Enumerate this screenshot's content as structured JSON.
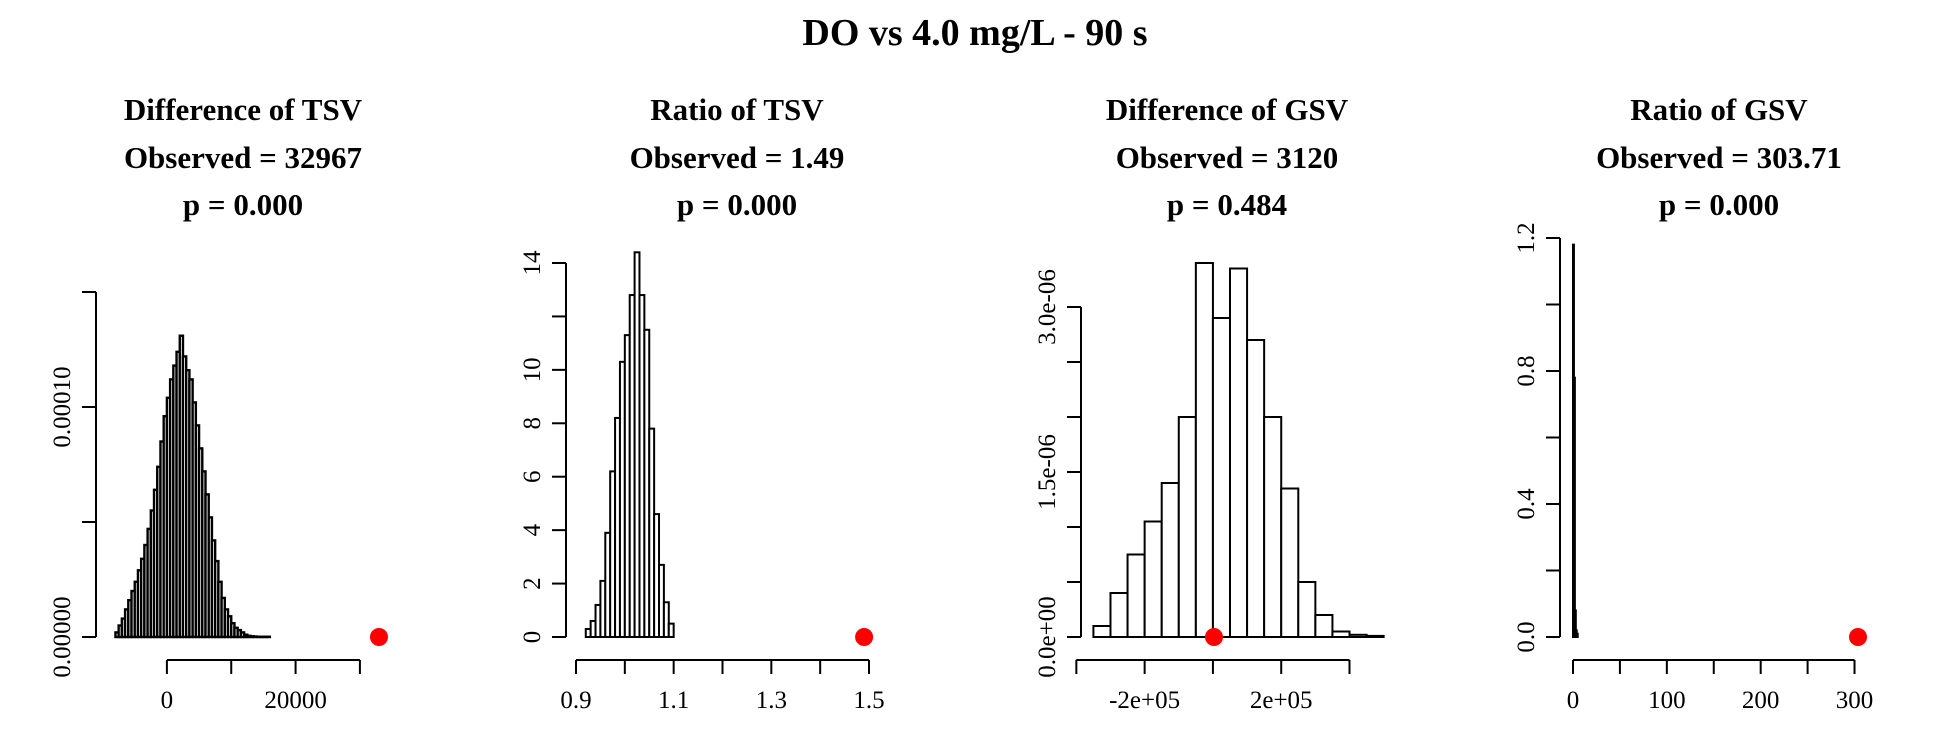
{
  "figure": {
    "title": "DO vs 4.0 mg/L - 90 s",
    "observed_color": "#ff0000"
  },
  "chart_data": [
    {
      "type": "histogram",
      "title": "Difference of TSV",
      "subtitle_observed": "Observed = 32967",
      "subtitle_p": "p = 0.000",
      "observed_value": 32967,
      "xlim": [
        -9000,
        32967
      ],
      "ylim": [
        0,
        0.00015
      ],
      "y_axis_max_tick": 0.00015,
      "x_ticks": [
        0,
        10000,
        20000,
        30000
      ],
      "x_tick_labels": [
        "0",
        "",
        "20000",
        ""
      ],
      "y_ticks": [
        0,
        5e-05,
        0.0001,
        0.00015
      ],
      "y_tick_labels": [
        "0.00000",
        "",
        "0.00010",
        ""
      ],
      "bin_start": -8000,
      "bin_width": 500,
      "bin_heights": [
        2e-06,
        5e-06,
        8e-06,
        1.2e-05,
        1.6e-05,
        2e-05,
        2.4e-05,
        2.9e-05,
        3.4e-05,
        4e-05,
        4.7e-05,
        5.5e-05,
        6.4e-05,
        7.4e-05,
        8.5e-05,
        9.6e-05,
        0.000104,
        0.000112,
        0.000118,
        0.000124,
        0.000131,
        0.000122,
        0.000116,
        0.000112,
        0.000102,
        9.2e-05,
        8.2e-05,
        7.2e-05,
        6.2e-05,
        5.2e-05,
        4.2e-05,
        3.3e-05,
        2.4e-05,
        1.7e-05,
        1.2e-05,
        9e-06,
        6e-06,
        4e-06,
        3e-06,
        2e-06,
        1e-06,
        5e-07,
        3e-07,
        2e-07,
        1e-07,
        1e-07,
        1e-07,
        1e-07
      ],
      "dense": true
    },
    {
      "type": "histogram",
      "title": "Ratio of TSV",
      "subtitle_observed": "Observed = 1.49",
      "subtitle_p": "p = 0.000",
      "observed_value": 1.49,
      "xlim": [
        0.9,
        1.5
      ],
      "ylim": [
        0,
        14
      ],
      "x_ticks": [
        0.9,
        1.0,
        1.1,
        1.2,
        1.3,
        1.4,
        1.5
      ],
      "x_tick_labels": [
        "0.9",
        "",
        "1.1",
        "",
        "1.3",
        "",
        "1.5"
      ],
      "y_ticks": [
        0,
        2,
        4,
        6,
        8,
        10,
        12,
        14
      ],
      "y_tick_labels": [
        "0",
        "2",
        "4",
        "6",
        "8",
        "10",
        "",
        "14"
      ],
      "bin_start": 0.92,
      "bin_width": 0.01,
      "bin_heights": [
        0.3,
        0.6,
        1.2,
        2.1,
        3.9,
        6.2,
        8.2,
        10.3,
        11.3,
        12.8,
        14.4,
        12.8,
        11.5,
        7.8,
        4.6,
        2.7,
        1.3,
        0.5
      ],
      "dense": false
    },
    {
      "type": "histogram",
      "title": "Difference of GSV",
      "subtitle_observed": "Observed = 3120",
      "subtitle_p": "p = 0.484",
      "observed_value": 3120,
      "xlim": [
        -360000,
        460000
      ],
      "ylim": [
        0,
        3.3e-06
      ],
      "x_ticks": [
        -400000,
        -200000,
        0,
        200000,
        400000
      ],
      "x_tick_labels": [
        "",
        "-2e+05",
        "",
        "2e+05",
        ""
      ],
      "y_ticks": [
        0,
        5e-07,
        1e-06,
        1.5e-06,
        2e-06,
        2.5e-06,
        3e-06
      ],
      "y_tick_labels": [
        "0.0e+00",
        "",
        "",
        "1.5e-06",
        "",
        "",
        "3.0e-06"
      ],
      "bin_start": -350000,
      "bin_width": 50000,
      "bin_heights": [
        1e-07,
        4e-07,
        7.5e-07,
        1.05e-06,
        1.4e-06,
        2e-06,
        3.4e-06,
        2.9e-06,
        3.35e-06,
        2.7e-06,
        2e-06,
        1.35e-06,
        5e-07,
        2e-07,
        5e-08,
        2e-08,
        1e-08
      ],
      "dense": false
    },
    {
      "type": "histogram",
      "title": "Ratio of GSV",
      "subtitle_observed": "Observed = 303.71",
      "subtitle_p": "p = 0.000",
      "observed_value": 303.71,
      "xlim": [
        0,
        303.71
      ],
      "ylim": [
        0,
        1.2
      ],
      "x_ticks": [
        0,
        50,
        100,
        150,
        200,
        250,
        300
      ],
      "x_tick_labels": [
        "0",
        "",
        "100",
        "",
        "200",
        "",
        "300"
      ],
      "y_ticks": [
        0,
        0.2,
        0.4,
        0.6,
        0.8,
        1.0,
        1.2
      ],
      "y_tick_labels": [
        "0.0",
        "",
        "0.4",
        "",
        "0.8",
        "",
        "1.2"
      ],
      "bin_start": 0,
      "bin_width": 1,
      "bin_heights": [
        1.18,
        0.78,
        0.08,
        0.02,
        0.01
      ],
      "dense": false
    }
  ]
}
